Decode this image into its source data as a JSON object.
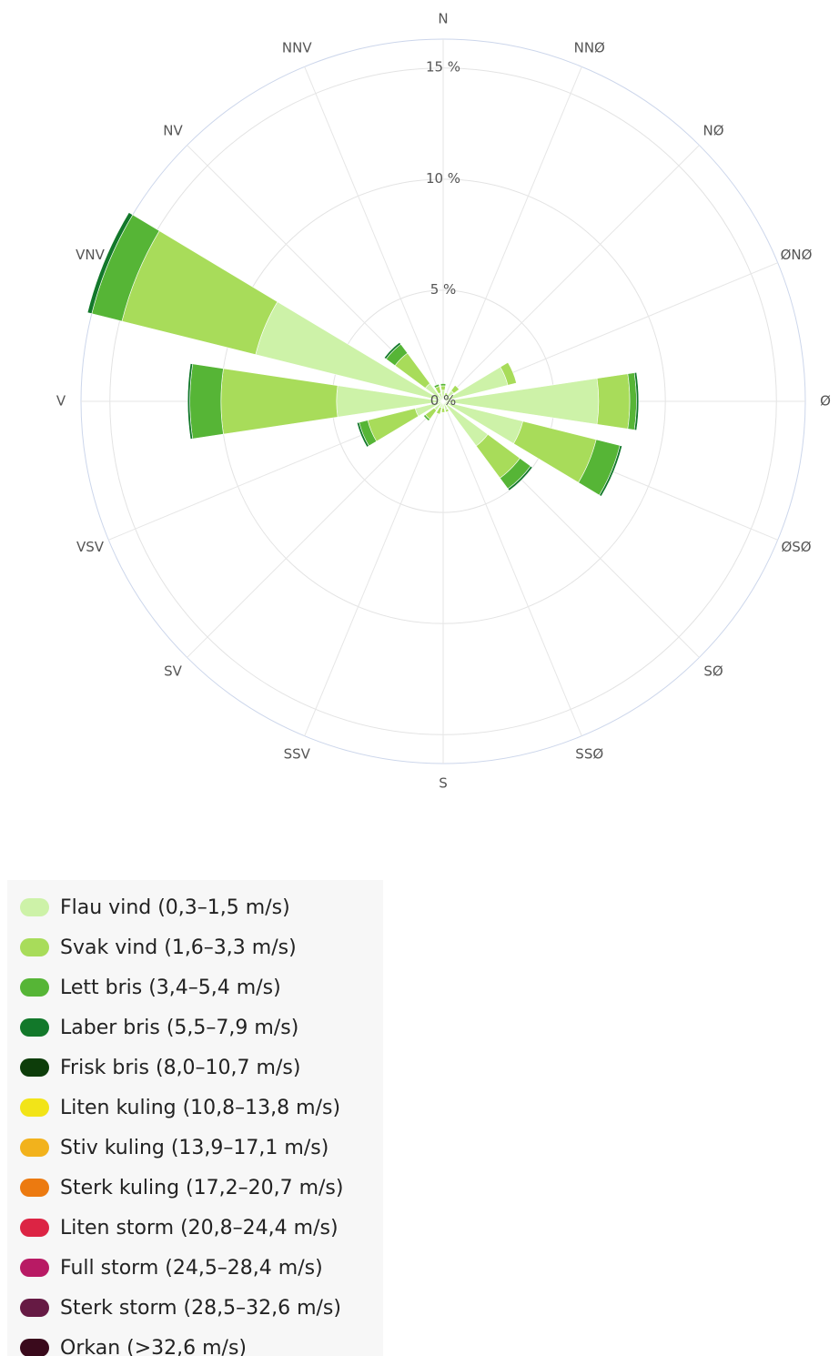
{
  "chart_data": {
    "type": "windrose",
    "unit": "%",
    "radial_ticks": [
      "0 %",
      "5 %",
      "10 %",
      "15 %"
    ],
    "radial_tick_values": [
      0,
      5,
      10,
      15
    ],
    "rmax": 16.3,
    "directions": [
      "N",
      "NNØ",
      "NØ",
      "ØNØ",
      "Ø",
      "ØSØ",
      "SØ",
      "SSØ",
      "S",
      "SSV",
      "SV",
      "VSV",
      "V",
      "VNV",
      "NV",
      "NNV"
    ],
    "series": [
      {
        "name": "Flau vind (0,3–1,5 m/s)",
        "color": "#cdf2a8",
        "values": [
          0.5,
          0.3,
          0.6,
          3.0,
          7.0,
          3.7,
          2.5,
          0.4,
          0.3,
          0.3,
          0.5,
          1.3,
          4.8,
          8.7,
          1.0,
          0.4
        ]
      },
      {
        "name": "Svak vind (1,6–3,3 m/s)",
        "color": "#a8dc5a",
        "values": [
          0.2,
          0.1,
          0.3,
          0.4,
          1.4,
          3.4,
          1.8,
          0.1,
          0.2,
          0.3,
          0.5,
          2.2,
          5.2,
          6.2,
          1.7,
          0.3
        ]
      },
      {
        "name": "Lett bris (3,4–5,4 m/s)",
        "color": "#56b536",
        "values": [
          0.1,
          0.0,
          0.0,
          0.0,
          0.3,
          1.1,
          0.6,
          0.0,
          0.0,
          0.0,
          0.1,
          0.4,
          1.4,
          1.4,
          0.5,
          0.1
        ]
      },
      {
        "name": "Laber bris (5,5–7,9 m/s)",
        "color": "#12782a",
        "values": [
          0,
          0,
          0,
          0,
          0.1,
          0.1,
          0.1,
          0,
          0,
          0,
          0,
          0.1,
          0.1,
          0.2,
          0.1,
          0
        ]
      },
      {
        "name": "Frisk bris (8,0–10,7 m/s)",
        "color": "#0d3d0a",
        "values": [
          0,
          0,
          0,
          0,
          0,
          0,
          0,
          0,
          0,
          0,
          0,
          0,
          0,
          0,
          0,
          0
        ]
      },
      {
        "name": "Liten kuling (10,8–13,8 m/s)",
        "color": "#f2e418",
        "values": [
          0,
          0,
          0,
          0,
          0,
          0,
          0,
          0,
          0,
          0,
          0,
          0,
          0,
          0,
          0,
          0
        ]
      },
      {
        "name": "Stiv kuling (13,9–17,1 m/s)",
        "color": "#f2b21c",
        "values": [
          0,
          0,
          0,
          0,
          0,
          0,
          0,
          0,
          0,
          0,
          0,
          0,
          0,
          0,
          0,
          0
        ]
      },
      {
        "name": "Sterk kuling (17,2–20,7 m/s)",
        "color": "#ec7a10",
        "values": [
          0,
          0,
          0,
          0,
          0,
          0,
          0,
          0,
          0,
          0,
          0,
          0,
          0,
          0,
          0,
          0
        ]
      },
      {
        "name": "Liten storm (20,8–24,4 m/s)",
        "color": "#dc2444",
        "values": [
          0,
          0,
          0,
          0,
          0,
          0,
          0,
          0,
          0,
          0,
          0,
          0,
          0,
          0,
          0,
          0
        ]
      },
      {
        "name": "Full storm (24,5–28,4 m/s)",
        "color": "#b81a64",
        "values": [
          0,
          0,
          0,
          0,
          0,
          0,
          0,
          0,
          0,
          0,
          0,
          0,
          0,
          0,
          0,
          0
        ]
      },
      {
        "name": "Sterk storm (28,5–32,6 m/s)",
        "color": "#661a44",
        "values": [
          0,
          0,
          0,
          0,
          0,
          0,
          0,
          0,
          0,
          0,
          0,
          0,
          0,
          0,
          0,
          0
        ]
      },
      {
        "name": "Orkan (>32,6 m/s)",
        "color": "#3a0a1c",
        "values": [
          0,
          0,
          0,
          0,
          0,
          0,
          0,
          0,
          0,
          0,
          0,
          0,
          0,
          0,
          0,
          0
        ]
      }
    ]
  }
}
